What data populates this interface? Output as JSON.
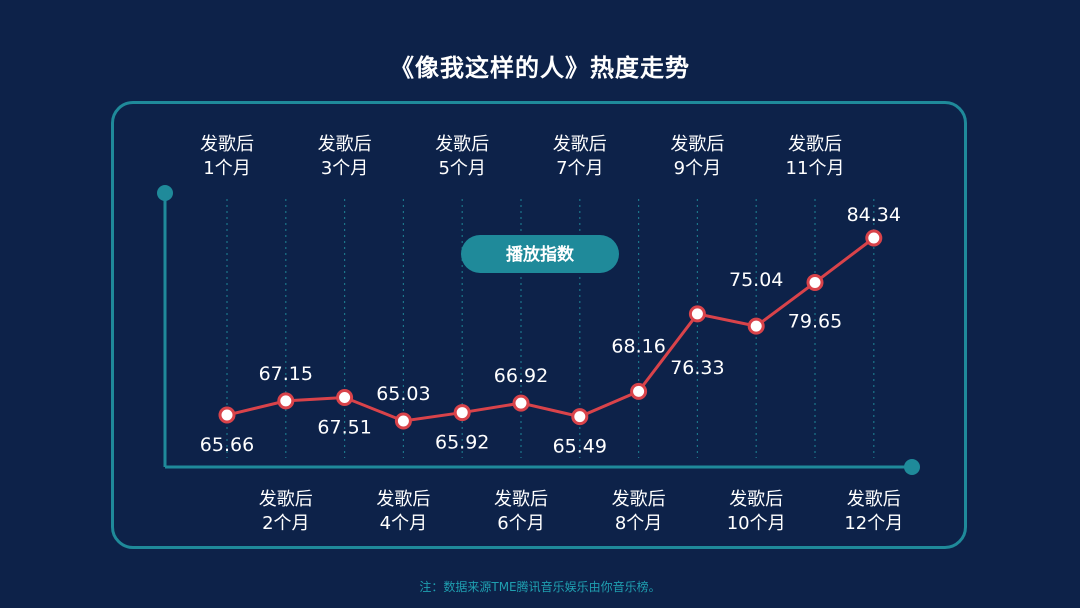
{
  "title": "《像我这样的人》热度走势",
  "footnote": "注：数据来源TME腾讯音乐娱乐由你音乐榜。",
  "colors": {
    "background": "#0d2249",
    "accent": "#1f8a9a",
    "line": "#d9434a",
    "text": "#ffffff"
  },
  "chart_data": {
    "type": "line",
    "legend_label": "播放指数",
    "categories": [
      "发歌后\n1个月",
      "发歌后\n2个月",
      "发歌后\n3个月",
      "发歌后\n4个月",
      "发歌后\n5个月",
      "发歌后\n6个月",
      "发歌后\n7个月",
      "发歌后\n8个月",
      "发歌后\n9个月",
      "发歌后\n10个月",
      "发歌后\n11个月",
      "发歌后\n12个月"
    ],
    "series": [
      {
        "name": "播放指数",
        "values": [
          65.66,
          67.15,
          67.51,
          65.03,
          65.92,
          66.92,
          65.49,
          68.16,
          76.33,
          75.04,
          79.65,
          84.34
        ]
      }
    ],
    "ylim": [
      60,
      88
    ],
    "grid": true
  }
}
